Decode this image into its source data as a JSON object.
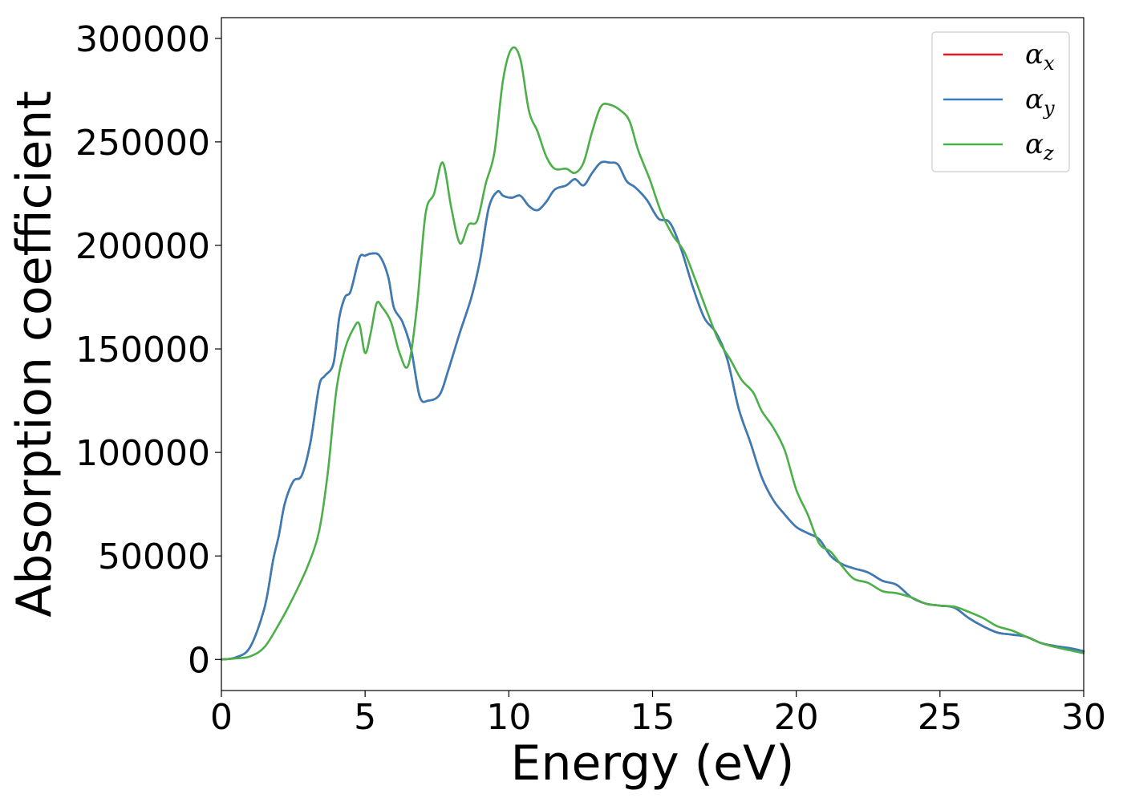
{
  "chart_data": {
    "type": "line",
    "xlabel": "Energy (eV)",
    "ylabel": "Absorption coefficient",
    "xlim": [
      0,
      30
    ],
    "ylim": [
      -15000,
      310000
    ],
    "xticks": [
      0,
      5,
      10,
      15,
      20,
      25,
      30
    ],
    "xtick_labels": [
      "0",
      "5",
      "10",
      "15",
      "20",
      "25",
      "30"
    ],
    "yticks": [
      0,
      50000,
      100000,
      150000,
      200000,
      250000,
      300000
    ],
    "ytick_labels": [
      "0",
      "50000",
      "100000",
      "150000",
      "200000",
      "250000",
      "300000"
    ],
    "grid": false,
    "legend_position": "top-right",
    "series": [
      {
        "name": "α_x",
        "legend_main": "α",
        "legend_sub": "x",
        "color": "#e41a1c",
        "x": [
          0,
          0.5,
          1.0,
          1.5,
          1.8,
          2.0,
          2.2,
          2.5,
          2.8,
          3.1,
          3.4,
          3.6,
          3.9,
          4.1,
          4.3,
          4.5,
          4.8,
          5.0,
          5.2,
          5.5,
          5.8,
          6.0,
          6.3,
          6.6,
          6.9,
          7.2,
          7.6,
          7.9,
          8.3,
          8.7,
          9.0,
          9.3,
          9.6,
          9.8,
          10.1,
          10.4,
          10.7,
          11.0,
          11.3,
          11.6,
          12.0,
          12.3,
          12.6,
          12.9,
          13.2,
          13.5,
          13.8,
          14.1,
          14.4,
          14.8,
          15.2,
          15.6,
          16.0,
          16.4,
          16.8,
          17.2,
          17.6,
          18.0,
          18.4,
          18.8,
          19.2,
          19.6,
          20.0,
          20.4,
          20.8,
          21.2,
          21.6,
          22.0,
          22.5,
          23.0,
          23.5,
          24.0,
          24.5,
          25.0,
          25.5,
          26.0,
          26.5,
          27.0,
          27.5,
          28.0,
          28.5,
          29.0,
          29.5,
          30.0
        ],
        "y": [
          0,
          1000,
          6000,
          25000,
          48000,
          60000,
          75000,
          86000,
          89000,
          105000,
          132000,
          137000,
          143000,
          165000,
          175000,
          178000,
          194000,
          195000,
          196000,
          195000,
          185000,
          170000,
          163000,
          150000,
          127000,
          125000,
          128000,
          140000,
          158000,
          175000,
          193000,
          218000,
          226000,
          224000,
          223000,
          224000,
          219000,
          217000,
          221000,
          227000,
          229000,
          232000,
          229000,
          235000,
          240000,
          240000,
          239000,
          231000,
          228000,
          222000,
          213000,
          211000,
          198000,
          180000,
          165000,
          158000,
          145000,
          121000,
          105000,
          88000,
          77000,
          70000,
          64000,
          61000,
          58000,
          50000,
          46000,
          44000,
          42000,
          38000,
          36000,
          30000,
          27000,
          26000,
          25000,
          20000,
          16000,
          13000,
          12000,
          11000,
          8000,
          6500,
          5500,
          4000
        ]
      },
      {
        "name": "α_y",
        "legend_main": "α",
        "legend_sub": "y",
        "color": "#377eb8",
        "x": [
          0,
          0.5,
          1.0,
          1.5,
          1.8,
          2.0,
          2.2,
          2.5,
          2.8,
          3.1,
          3.4,
          3.6,
          3.9,
          4.1,
          4.3,
          4.5,
          4.8,
          5.0,
          5.2,
          5.5,
          5.8,
          6.0,
          6.3,
          6.6,
          6.9,
          7.2,
          7.6,
          7.9,
          8.3,
          8.7,
          9.0,
          9.3,
          9.6,
          9.8,
          10.1,
          10.4,
          10.7,
          11.0,
          11.3,
          11.6,
          12.0,
          12.3,
          12.6,
          12.9,
          13.2,
          13.5,
          13.8,
          14.1,
          14.4,
          14.8,
          15.2,
          15.6,
          16.0,
          16.4,
          16.8,
          17.2,
          17.6,
          18.0,
          18.4,
          18.8,
          19.2,
          19.6,
          20.0,
          20.4,
          20.8,
          21.2,
          21.6,
          22.0,
          22.5,
          23.0,
          23.5,
          24.0,
          24.5,
          25.0,
          25.5,
          26.0,
          26.5,
          27.0,
          27.5,
          28.0,
          28.5,
          29.0,
          29.5,
          30.0
        ],
        "y": [
          0,
          1000,
          6000,
          25000,
          48000,
          60000,
          75000,
          86000,
          89000,
          105000,
          132000,
          137000,
          143000,
          165000,
          175000,
          178000,
          194000,
          195000,
          196000,
          195000,
          185000,
          170000,
          163000,
          150000,
          127000,
          125000,
          128000,
          140000,
          158000,
          175000,
          193000,
          218000,
          226000,
          224000,
          223000,
          224000,
          219000,
          217000,
          221000,
          227000,
          229000,
          232000,
          229000,
          235000,
          240000,
          240000,
          239000,
          231000,
          228000,
          222000,
          213000,
          211000,
          198000,
          180000,
          165000,
          158000,
          145000,
          121000,
          105000,
          88000,
          77000,
          70000,
          64000,
          61000,
          58000,
          50000,
          46000,
          44000,
          42000,
          38000,
          36000,
          30000,
          27000,
          26000,
          25000,
          20000,
          16000,
          13000,
          12000,
          11000,
          8000,
          6500,
          5500,
          4000
        ]
      },
      {
        "name": "α_z",
        "legend_main": "α",
        "legend_sub": "z",
        "color": "#4daf4a",
        "x": [
          0,
          0.5,
          1.0,
          1.5,
          2.0,
          2.5,
          3.0,
          3.4,
          3.7,
          4.0,
          4.3,
          4.6,
          4.8,
          5.0,
          5.2,
          5.4,
          5.6,
          5.9,
          6.2,
          6.5,
          6.8,
          7.1,
          7.4,
          7.7,
          8.0,
          8.3,
          8.6,
          8.9,
          9.2,
          9.5,
          9.8,
          10.1,
          10.4,
          10.7,
          11.0,
          11.3,
          11.6,
          12.0,
          12.3,
          12.6,
          12.9,
          13.2,
          13.5,
          13.9,
          14.2,
          14.5,
          14.9,
          15.3,
          15.7,
          16.1,
          16.5,
          16.9,
          17.3,
          17.7,
          18.1,
          18.5,
          18.8,
          19.2,
          19.6,
          20.0,
          20.4,
          20.8,
          21.2,
          21.6,
          22.0,
          22.5,
          23.0,
          23.5,
          24.0,
          24.5,
          25.0,
          25.5,
          26.0,
          26.5,
          27.0,
          27.5,
          28.0,
          28.5,
          29.0,
          29.5,
          30.0
        ],
        "y": [
          0,
          500,
          1500,
          6000,
          17000,
          30000,
          45000,
          62000,
          90000,
          130000,
          150000,
          160000,
          162000,
          148000,
          158000,
          172000,
          170000,
          163000,
          148000,
          142000,
          170000,
          215000,
          225000,
          240000,
          218000,
          201000,
          210000,
          212000,
          230000,
          245000,
          280000,
          295000,
          290000,
          265000,
          255000,
          243000,
          237000,
          237000,
          235000,
          240000,
          255000,
          267000,
          268000,
          265000,
          260000,
          246000,
          232000,
          216000,
          205000,
          197000,
          183000,
          168000,
          154000,
          145000,
          135000,
          129000,
          120000,
          112000,
          101000,
          82000,
          70000,
          56000,
          52000,
          45000,
          39000,
          37000,
          33000,
          32000,
          30000,
          27000,
          26000,
          25500,
          23000,
          20000,
          16000,
          14000,
          11000,
          8000,
          6000,
          4500,
          3000
        ]
      }
    ]
  }
}
